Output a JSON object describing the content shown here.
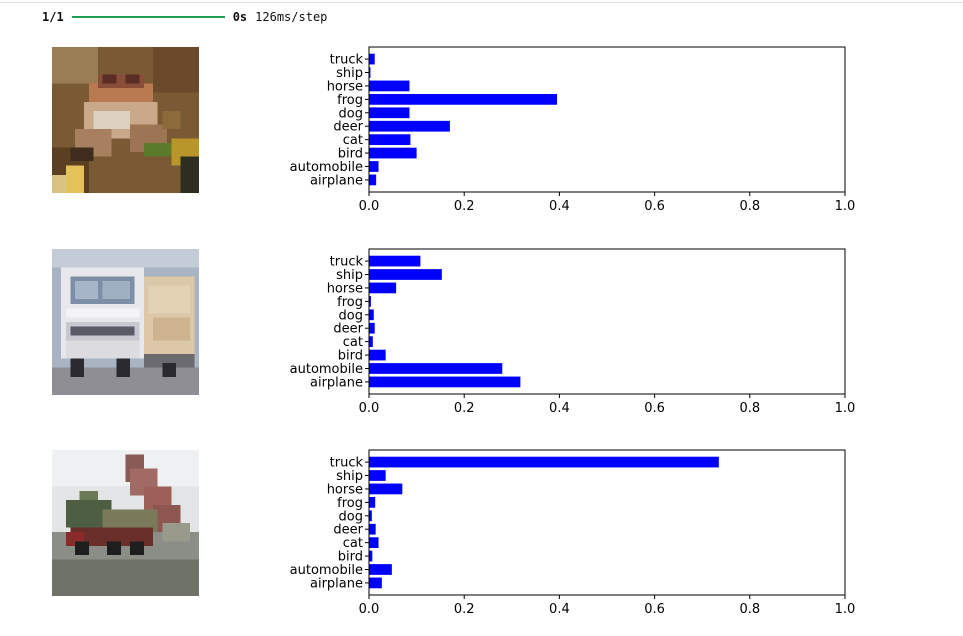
{
  "progress": {
    "step": "1/1",
    "time": "0s",
    "rate": "126ms/step",
    "fraction": 1.0,
    "bar_color": "#1f9d55"
  },
  "images": [
    {
      "name": "frog-image"
    },
    {
      "name": "truck-image"
    },
    {
      "name": "dump-truck-image"
    }
  ],
  "chart_data": [
    {
      "type": "bar",
      "orientation": "horizontal",
      "categories": [
        "airplane",
        "automobile",
        "bird",
        "cat",
        "deer",
        "dog",
        "frog",
        "horse",
        "ship",
        "truck"
      ],
      "values": [
        0.015,
        0.02,
        0.1,
        0.087,
        0.17,
        0.085,
        0.395,
        0.085,
        0.003,
        0.012
      ],
      "xlim": [
        0,
        1.0
      ],
      "xticks": [
        "0.0",
        "0.2",
        "0.4",
        "0.6",
        "0.8",
        "1.0"
      ],
      "bar_color": "#0000ff",
      "grid": false
    },
    {
      "type": "bar",
      "orientation": "horizontal",
      "categories": [
        "airplane",
        "automobile",
        "bird",
        "cat",
        "deer",
        "dog",
        "frog",
        "horse",
        "ship",
        "truck"
      ],
      "values": [
        0.318,
        0.28,
        0.035,
        0.008,
        0.012,
        0.01,
        0.004,
        0.057,
        0.153,
        0.108
      ],
      "xlim": [
        0,
        1.0
      ],
      "xticks": [
        "0.0",
        "0.2",
        "0.4",
        "0.6",
        "0.8",
        "1.0"
      ],
      "bar_color": "#0000ff",
      "grid": false
    },
    {
      "type": "bar",
      "orientation": "horizontal",
      "categories": [
        "airplane",
        "automobile",
        "bird",
        "cat",
        "deer",
        "dog",
        "frog",
        "horse",
        "ship",
        "truck"
      ],
      "values": [
        0.027,
        0.048,
        0.007,
        0.02,
        0.014,
        0.006,
        0.013,
        0.07,
        0.035,
        0.735
      ],
      "xlim": [
        0,
        1.0
      ],
      "xticks": [
        "0.0",
        "0.2",
        "0.4",
        "0.6",
        "0.8",
        "1.0"
      ],
      "bar_color": "#0000ff",
      "grid": false
    }
  ]
}
